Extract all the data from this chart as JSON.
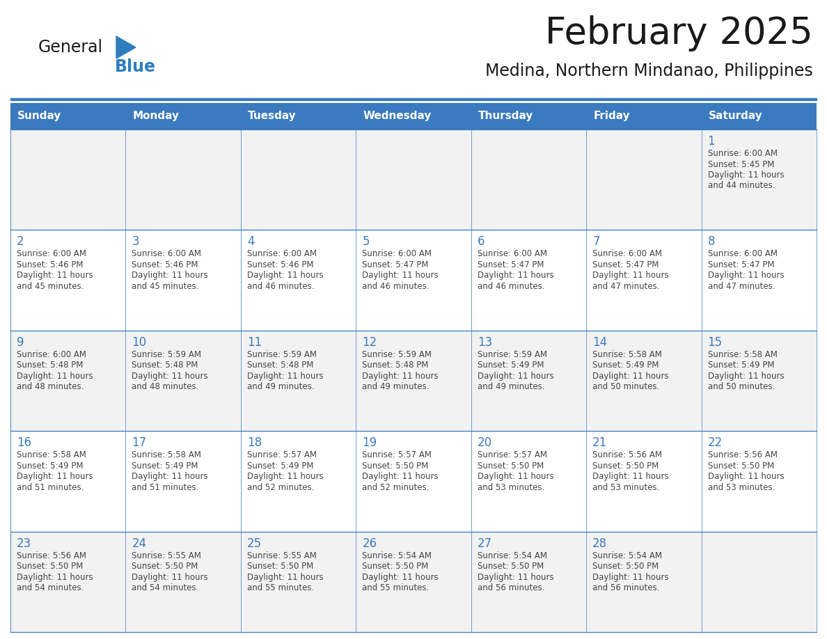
{
  "title": "February 2025",
  "subtitle": "Medina, Northern Mindanao, Philippines",
  "header_bg": "#3a7abf",
  "header_text_color": "#ffffff",
  "cell_bg_even": "#f2f2f2",
  "cell_bg_odd": "#ffffff",
  "grid_line_color": "#3a7abf",
  "day_names": [
    "Sunday",
    "Monday",
    "Tuesday",
    "Wednesday",
    "Thursday",
    "Friday",
    "Saturday"
  ],
  "title_color": "#1a1a1a",
  "subtitle_color": "#1a1a1a",
  "day_number_color": "#3a7abf",
  "cell_text_color": "#444444",
  "logo_general_color": "#1a1a1a",
  "logo_blue_color": "#2e7ebf",
  "days": [
    {
      "date": 1,
      "row": 0,
      "col": 6,
      "sunrise": "6:00 AM",
      "sunset": "5:45 PM",
      "daylight_suffix": "44 minutes."
    },
    {
      "date": 2,
      "row": 1,
      "col": 0,
      "sunrise": "6:00 AM",
      "sunset": "5:46 PM",
      "daylight_suffix": "45 minutes."
    },
    {
      "date": 3,
      "row": 1,
      "col": 1,
      "sunrise": "6:00 AM",
      "sunset": "5:46 PM",
      "daylight_suffix": "45 minutes."
    },
    {
      "date": 4,
      "row": 1,
      "col": 2,
      "sunrise": "6:00 AM",
      "sunset": "5:46 PM",
      "daylight_suffix": "46 minutes."
    },
    {
      "date": 5,
      "row": 1,
      "col": 3,
      "sunrise": "6:00 AM",
      "sunset": "5:47 PM",
      "daylight_suffix": "46 minutes."
    },
    {
      "date": 6,
      "row": 1,
      "col": 4,
      "sunrise": "6:00 AM",
      "sunset": "5:47 PM",
      "daylight_suffix": "46 minutes."
    },
    {
      "date": 7,
      "row": 1,
      "col": 5,
      "sunrise": "6:00 AM",
      "sunset": "5:47 PM",
      "daylight_suffix": "47 minutes."
    },
    {
      "date": 8,
      "row": 1,
      "col": 6,
      "sunrise": "6:00 AM",
      "sunset": "5:47 PM",
      "daylight_suffix": "47 minutes."
    },
    {
      "date": 9,
      "row": 2,
      "col": 0,
      "sunrise": "6:00 AM",
      "sunset": "5:48 PM",
      "daylight_suffix": "48 minutes."
    },
    {
      "date": 10,
      "row": 2,
      "col": 1,
      "sunrise": "5:59 AM",
      "sunset": "5:48 PM",
      "daylight_suffix": "48 minutes."
    },
    {
      "date": 11,
      "row": 2,
      "col": 2,
      "sunrise": "5:59 AM",
      "sunset": "5:48 PM",
      "daylight_suffix": "49 minutes."
    },
    {
      "date": 12,
      "row": 2,
      "col": 3,
      "sunrise": "5:59 AM",
      "sunset": "5:48 PM",
      "daylight_suffix": "49 minutes."
    },
    {
      "date": 13,
      "row": 2,
      "col": 4,
      "sunrise": "5:59 AM",
      "sunset": "5:49 PM",
      "daylight_suffix": "49 minutes."
    },
    {
      "date": 14,
      "row": 2,
      "col": 5,
      "sunrise": "5:58 AM",
      "sunset": "5:49 PM",
      "daylight_suffix": "50 minutes."
    },
    {
      "date": 15,
      "row": 2,
      "col": 6,
      "sunrise": "5:58 AM",
      "sunset": "5:49 PM",
      "daylight_suffix": "50 minutes."
    },
    {
      "date": 16,
      "row": 3,
      "col": 0,
      "sunrise": "5:58 AM",
      "sunset": "5:49 PM",
      "daylight_suffix": "51 minutes."
    },
    {
      "date": 17,
      "row": 3,
      "col": 1,
      "sunrise": "5:58 AM",
      "sunset": "5:49 PM",
      "daylight_suffix": "51 minutes."
    },
    {
      "date": 18,
      "row": 3,
      "col": 2,
      "sunrise": "5:57 AM",
      "sunset": "5:49 PM",
      "daylight_suffix": "52 minutes."
    },
    {
      "date": 19,
      "row": 3,
      "col": 3,
      "sunrise": "5:57 AM",
      "sunset": "5:50 PM",
      "daylight_suffix": "52 minutes."
    },
    {
      "date": 20,
      "row": 3,
      "col": 4,
      "sunrise": "5:57 AM",
      "sunset": "5:50 PM",
      "daylight_suffix": "53 minutes."
    },
    {
      "date": 21,
      "row": 3,
      "col": 5,
      "sunrise": "5:56 AM",
      "sunset": "5:50 PM",
      "daylight_suffix": "53 minutes."
    },
    {
      "date": 22,
      "row": 3,
      "col": 6,
      "sunrise": "5:56 AM",
      "sunset": "5:50 PM",
      "daylight_suffix": "53 minutes."
    },
    {
      "date": 23,
      "row": 4,
      "col": 0,
      "sunrise": "5:56 AM",
      "sunset": "5:50 PM",
      "daylight_suffix": "54 minutes."
    },
    {
      "date": 24,
      "row": 4,
      "col": 1,
      "sunrise": "5:55 AM",
      "sunset": "5:50 PM",
      "daylight_suffix": "54 minutes."
    },
    {
      "date": 25,
      "row": 4,
      "col": 2,
      "sunrise": "5:55 AM",
      "sunset": "5:50 PM",
      "daylight_suffix": "55 minutes."
    },
    {
      "date": 26,
      "row": 4,
      "col": 3,
      "sunrise": "5:54 AM",
      "sunset": "5:50 PM",
      "daylight_suffix": "55 minutes."
    },
    {
      "date": 27,
      "row": 4,
      "col": 4,
      "sunrise": "5:54 AM",
      "sunset": "5:50 PM",
      "daylight_suffix": "56 minutes."
    },
    {
      "date": 28,
      "row": 4,
      "col": 5,
      "sunrise": "5:54 AM",
      "sunset": "5:50 PM",
      "daylight_suffix": "56 minutes."
    }
  ]
}
